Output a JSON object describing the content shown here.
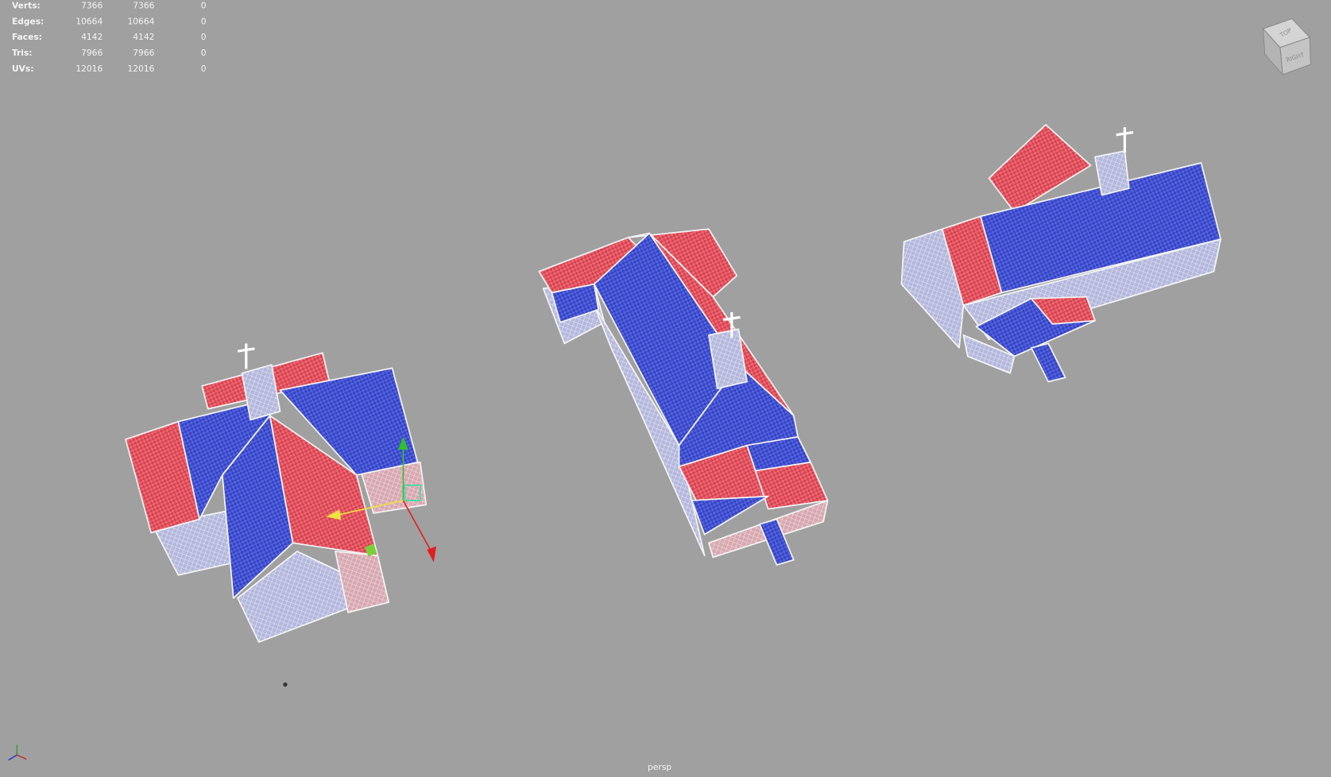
{
  "hud": {
    "rows": [
      {
        "label": "Verts:",
        "values": [
          7366,
          7366,
          0
        ]
      },
      {
        "label": "Edges:",
        "values": [
          10664,
          10664,
          0
        ]
      },
      {
        "label": "Faces:",
        "values": [
          4142,
          4142,
          0
        ]
      },
      {
        "label": "Tris:",
        "values": [
          7966,
          7966,
          0
        ]
      },
      {
        "label": "UVs:",
        "values": [
          12016,
          12016,
          0
        ]
      }
    ]
  },
  "view_cube": {
    "top": "TOP",
    "right": "RIGHT"
  },
  "camera": "persp"
}
